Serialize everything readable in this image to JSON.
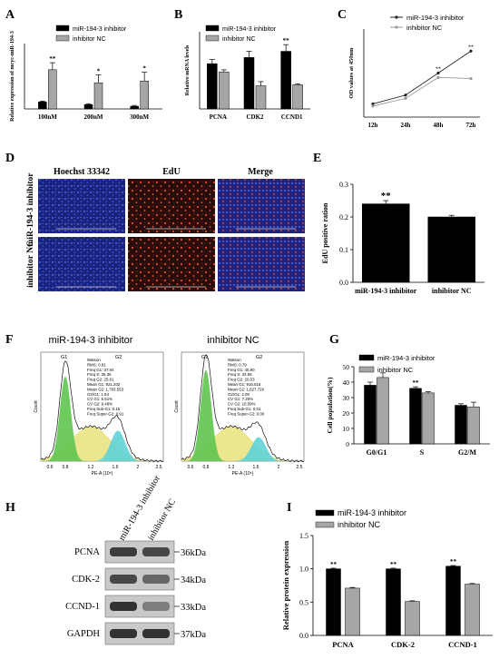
{
  "panel_letters": [
    "A",
    "B",
    "C",
    "D",
    "E",
    "F",
    "G",
    "H",
    "I"
  ],
  "colors": {
    "black": "#000000",
    "gray": "#a6a6a6",
    "blue_cells": "#1d2f8c",
    "red_cells": "#d63a1e"
  },
  "chart_data": [
    {
      "panel": "A",
      "type": "bar",
      "ylabel": "Relative expression of mcyc-miR-194-3",
      "categories": [
        "100nM",
        "200nM",
        "300nM"
      ],
      "series": [
        {
          "name": "miR-194-3 inhibitor",
          "values": [
            0.08,
            0.05,
            0.03
          ],
          "errors": [
            0.01,
            0.01,
            0.01
          ],
          "sig": [
            "",
            "",
            ""
          ]
        },
        {
          "name": "inhibitor NC",
          "values": [
            0.45,
            0.3,
            0.32
          ],
          "errors": [
            0.08,
            0.09,
            0.1
          ],
          "sig": [
            "**",
            "*",
            "*"
          ]
        }
      ],
      "ylim": [
        0,
        0.75
      ]
    },
    {
      "panel": "B",
      "type": "bar",
      "ylabel": "Relative mRNA levels",
      "categories": [
        "PCNA",
        "CDK2",
        "CCND1"
      ],
      "series": [
        {
          "name": "miR-194-3 inhibitor",
          "values": [
            0.88,
            1.0,
            1.12
          ],
          "errors": [
            0.08,
            0.12,
            0.13
          ],
          "sig": [
            "",
            "",
            "**"
          ]
        },
        {
          "name": "inhibitor NC",
          "values": [
            0.72,
            0.45,
            0.47
          ],
          "errors": [
            0.04,
            0.08,
            0.02
          ],
          "sig": [
            "",
            "",
            ""
          ]
        }
      ],
      "ylim": [
        0,
        1.5
      ]
    },
    {
      "panel": "C",
      "type": "line",
      "ylabel": "OD values at 450nm",
      "x": [
        "12h",
        "24h",
        "48h",
        "72h"
      ],
      "series": [
        {
          "name": "miR-194-3 inhibitor",
          "values": [
            0.52,
            0.6,
            0.8,
            1.0
          ],
          "sig": [
            "",
            "",
            "**",
            "**"
          ]
        },
        {
          "name": "inhibitor NC",
          "values": [
            0.5,
            0.57,
            0.76,
            0.75
          ],
          "sig": [
            "",
            "",
            "",
            ""
          ]
        }
      ],
      "ylim": [
        0.4,
        1.2
      ]
    },
    {
      "panel": "E",
      "type": "bar",
      "ylabel": "EdU positive ration",
      "categories": [
        "miR-194-3 inhibitor",
        "inhibitor NC"
      ],
      "values": [
        0.24,
        0.2
      ],
      "errors": [
        0.01,
        0.005
      ],
      "sig": [
        "**",
        ""
      ],
      "yticks": [
        "0.0",
        "0.1",
        "0.2",
        "0.3"
      ],
      "ylim": [
        0,
        0.3
      ]
    },
    {
      "panel": "G",
      "type": "bar",
      "ylabel": "Cell population(%)",
      "categories": [
        "G0/G1",
        "S",
        "G2/M"
      ],
      "series": [
        {
          "name": "miR-194-3 inhibitor",
          "values": [
            38,
            36,
            25
          ],
          "errors": [
            2.0,
            1.0,
            1.0
          ],
          "sig": [
            "",
            "**",
            ""
          ]
        },
        {
          "name": "inhibitor NC",
          "values": [
            43,
            33,
            24
          ],
          "errors": [
            3.0,
            0.8,
            3.0
          ],
          "sig": [
            "",
            "",
            ""
          ]
        }
      ],
      "yticks": [
        "0",
        "10",
        "20",
        "30",
        "40",
        "50"
      ],
      "ylim": [
        0,
        50
      ]
    },
    {
      "panel": "I",
      "type": "bar",
      "ylabel": "Relative protein expression",
      "categories": [
        "PCNA",
        "CDK-2",
        "CCND-1"
      ],
      "series": [
        {
          "name": "miR-194-3 inhibitor",
          "values": [
            1.0,
            1.0,
            1.04
          ],
          "errors": [
            0.01,
            0.01,
            0.01
          ],
          "sig": [
            "**",
            "**",
            "**"
          ]
        },
        {
          "name": "inhibitor NC",
          "values": [
            0.71,
            0.51,
            0.77
          ],
          "errors": [
            0.01,
            0.01,
            0.01
          ],
          "sig": [
            "",
            "",
            ""
          ]
        }
      ],
      "yticks": [
        "0.0",
        "0.5",
        "1.0",
        "1.5"
      ],
      "ylim": [
        0,
        1.5
      ]
    }
  ],
  "panelD": {
    "columns": [
      "Hoechst 33342",
      "EdU",
      "Merge"
    ],
    "rows": [
      "miR-194-3 inhibitor",
      "inhibitor NC"
    ]
  },
  "panelF": {
    "plots": [
      {
        "title": "miR-194-3 inhibitor",
        "xlabel": "PE-A (10⁵)",
        "ylabel": "Count",
        "xticks": [
          "0.6",
          "0.8",
          "1.2",
          "1.6",
          "2",
          "2.5"
        ],
        "peaks": [
          "G1",
          "G2"
        ],
        "stats": [
          "Watson",
          "RMS: 0.91",
          "Freq G1: 37.94",
          "Freq S: 35.36",
          "Freq G2: 25.61",
          "Mean G1: 921.202",
          "Mean G2: 1,783.553",
          "G2/G1: 1.94",
          "CV G1: 5.51%",
          "CV G2: 9.48%",
          "Freq Sub-G1: 0.15",
          "Freq Super-G2: 0.91"
        ]
      },
      {
        "title": "inhibitor NC",
        "xlabel": "PE-A (10⁵)",
        "ylabel": "Count",
        "xticks": [
          "0.6",
          "0.8",
          "1.2",
          "1.6",
          "2",
          "2.5"
        ],
        "peaks": [
          "G1",
          "G2"
        ],
        "stats": [
          "Watson",
          "RMS: 0.79",
          "Freq G1: 45.90",
          "Freq S: 33.56",
          "Freq G2: 20.53",
          "Mean G1: 915.515",
          "Mean G2: 1,827.726",
          "G2/G1: 2.00",
          "CV G1: 7.20%",
          "CV G2: 10.59%",
          "Freq Sub-G1: 0.01",
          "Freq Super-G2: 0.00"
        ]
      }
    ]
  },
  "panelH": {
    "lanes": [
      "miR-194-3 inhibitor",
      "inhibitor NC"
    ],
    "bands": [
      {
        "label": "PCNA",
        "size": "36kDa"
      },
      {
        "label": "CDK-2",
        "size": "34kDa"
      },
      {
        "label": "CCND-1",
        "size": "33kDa"
      },
      {
        "label": "GAPDH",
        "size": "37kDa"
      }
    ]
  }
}
